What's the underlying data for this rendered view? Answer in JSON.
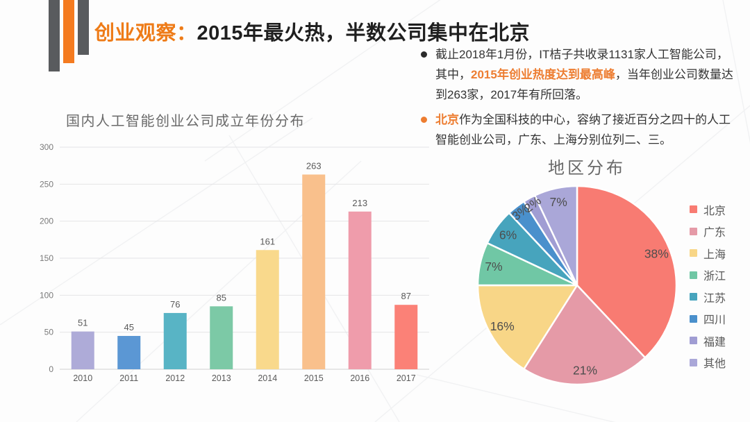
{
  "header": {
    "accent": "创业观察：",
    "title": "2015年最火热，半数公司集中在北京"
  },
  "bullets": [
    {
      "dot_color": "#2b2b2b",
      "segments": [
        {
          "text": "截止2018年1月份，IT桔子共收录1131家人工智能公司，其中，",
          "highlight": false
        },
        {
          "text": "2015年创业热度达到最高峰",
          "highlight": true
        },
        {
          "text": "，当年创业公司数量达到263家，2017年有所回落。",
          "highlight": false
        }
      ]
    },
    {
      "dot_color": "#ed7d31",
      "segments": [
        {
          "text": "北京",
          "highlight": true
        },
        {
          "text": "作为全国科技的中心，容纳了接近百分之四十的人工智能创业公司，广东、上海分别位列二、三。",
          "highlight": false
        }
      ]
    }
  ],
  "colors": {
    "accent_orange": "#ee7b17",
    "deco_gray": "#595b5e",
    "deco_orange": "#f47b20",
    "highlight_orange": "#ed7d31",
    "chart_text": "#5a5a5a",
    "axis_text": "#7a7a7a",
    "gridline": "#e4e4e6"
  },
  "chart_data": [
    {
      "type": "bar",
      "title": "国内人工智能创业公司成立年份分布",
      "categories": [
        "2010",
        "2011",
        "2012",
        "2013",
        "2014",
        "2015",
        "2016",
        "2017"
      ],
      "values": [
        51,
        45,
        76,
        85,
        161,
        263,
        213,
        87
      ],
      "bar_colors": [
        "#aeabd8",
        "#5b97d4",
        "#58b4c5",
        "#7cc9a6",
        "#f9d98c",
        "#f9c08c",
        "#ef9cab",
        "#fb8177"
      ],
      "xlabel": "",
      "ylabel": "",
      "ylim": [
        0,
        300
      ],
      "ytick_step": 50,
      "yticks": [
        0,
        50,
        100,
        150,
        200,
        250,
        300
      ],
      "grid": true,
      "legend_position": "none"
    },
    {
      "type": "pie",
      "title": "地区分布",
      "labels": [
        "北京",
        "广东",
        "上海",
        "浙江",
        "江苏",
        "四川",
        "福建",
        "其他"
      ],
      "values": [
        38,
        21,
        16,
        7,
        6,
        3,
        2,
        7
      ],
      "percent_labels": [
        "38%",
        "21%",
        "16%",
        "7%",
        "6%",
        "3%",
        "2%",
        "7%"
      ],
      "colors": [
        "#f87b72",
        "#e59aa7",
        "#f8d687",
        "#70c7a5",
        "#47a4bd",
        "#4a90cc",
        "#a09dd3",
        "#aaa7d8"
      ],
      "start_angle_deg": -90,
      "direction": "clockwise",
      "legend_position": "right"
    }
  ]
}
